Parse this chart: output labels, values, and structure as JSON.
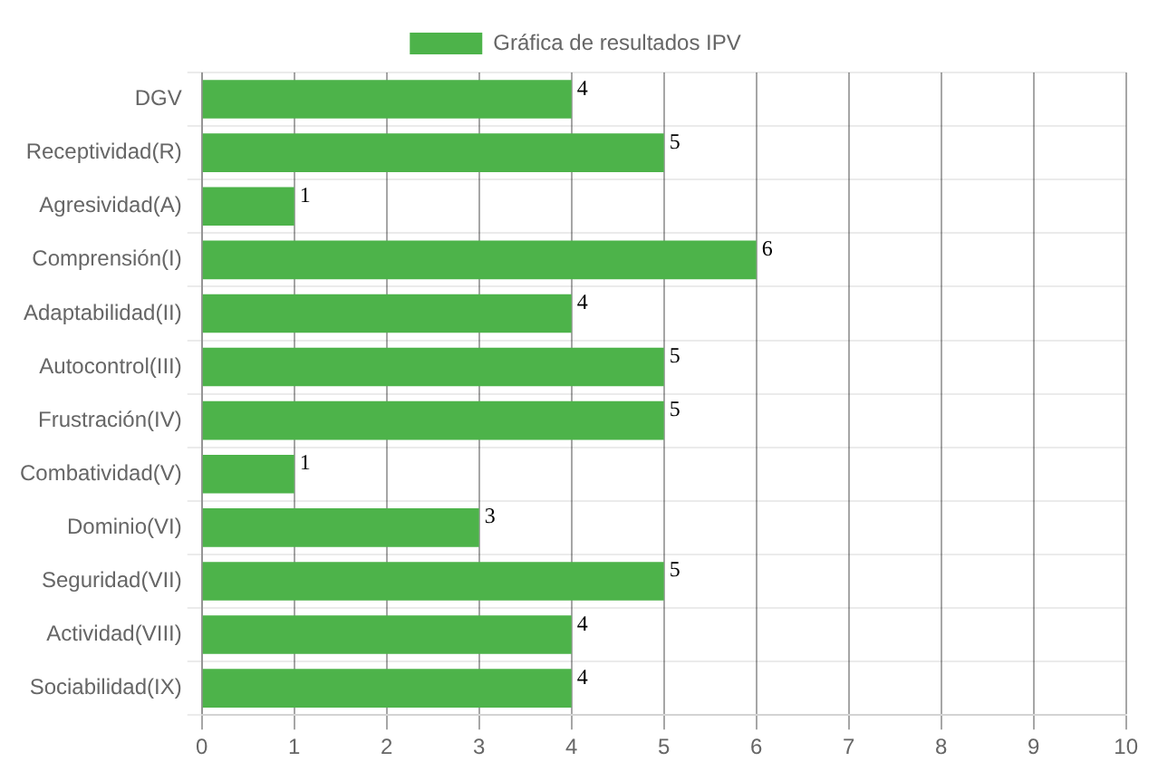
{
  "chart_data": {
    "type": "bar",
    "orientation": "horizontal",
    "categories": [
      "DGV",
      "Receptividad(R)",
      "Agresividad(A)",
      "Comprensión(I)",
      "Adaptabilidad(II)",
      "Autocontrol(III)",
      "Frustración(IV)",
      "Combatividad(V)",
      "Dominio(VI)",
      "Seguridad(VII)",
      "Actividad(VIII)",
      "Sociabilidad(IX)"
    ],
    "series": [
      {
        "name": "Gráfica de resultados IPV",
        "color": "#4db34a",
        "values": [
          4,
          5,
          1,
          6,
          4,
          5,
          5,
          1,
          3,
          5,
          4,
          4
        ]
      }
    ],
    "xlim": [
      0,
      10
    ],
    "xticks": [
      0,
      1,
      2,
      3,
      4,
      5,
      6,
      7,
      8,
      9,
      10
    ],
    "grid": true,
    "legend": "top",
    "data_labels": true
  }
}
